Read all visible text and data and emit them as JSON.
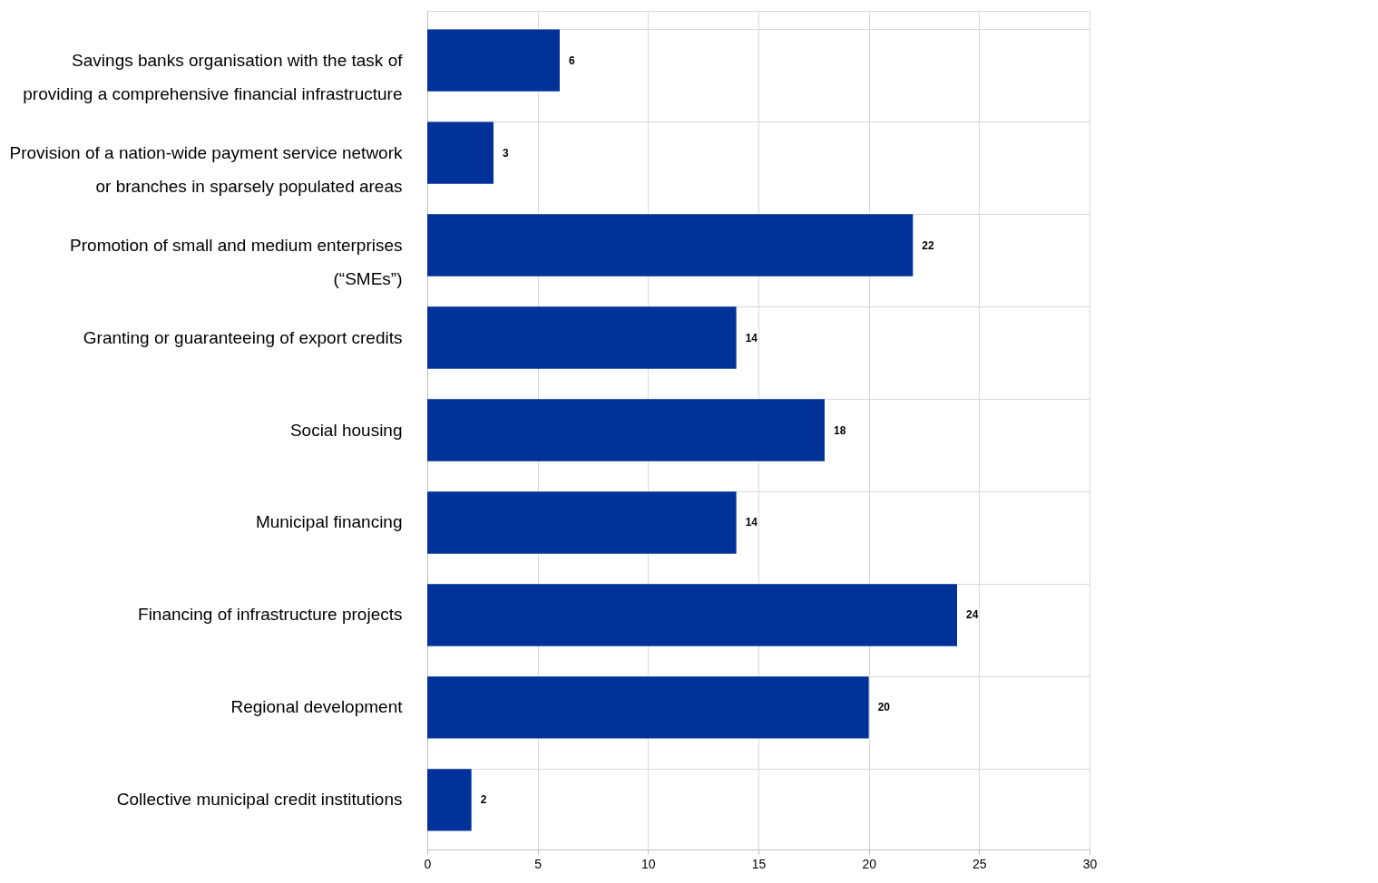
{
  "chart_data": {
    "type": "bar",
    "orientation": "horizontal",
    "categories": [
      "Savings banks organisation with the task of\nproviding a comprehensive financial infrastructure",
      "Provision of a nation-wide payment service network\nor branches in sparsely populated areas",
      "Promotion of small and medium enterprises\n(“SMEs”)",
      "Granting or guaranteeing of export credits",
      "Social housing",
      "Municipal financing",
      "Financing of infrastructure projects",
      "Regional development",
      "Collective municipal credit institutions"
    ],
    "values": [
      6,
      3,
      22,
      14,
      18,
      14,
      24,
      20,
      2
    ],
    "color": "#003299",
    "xlim": [
      0,
      30
    ],
    "xticks": [
      0,
      5,
      10,
      15,
      20,
      25,
      30
    ],
    "grid": true,
    "data_labels": true
  }
}
